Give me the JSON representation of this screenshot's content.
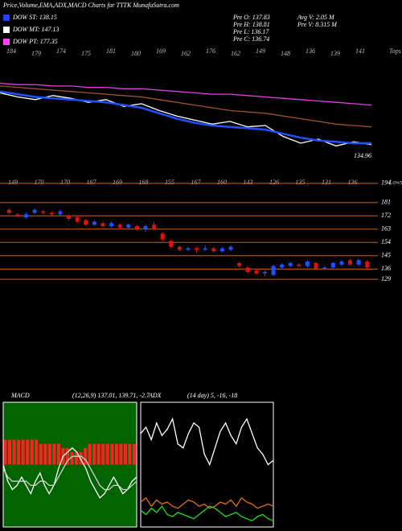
{
  "header": {
    "title": "Price,Volume,EMA,ADX,MACD Charts for TTTK MunafaSutra.com",
    "legend": [
      {
        "label": "DOW ST: 138.15",
        "color": "#2040ff"
      },
      {
        "label": "DOW MT: 147.13",
        "color": "#ffffff"
      },
      {
        "label": "DOW PT: 177.35",
        "color": "#ff40ff"
      }
    ],
    "info": [
      "Pre O: 137.83",
      "Pre H: 138.81",
      "Pre L: 136.17",
      "Pre C: 136.74"
    ],
    "info2": [
      "Avg V: 2.05 M",
      "Pre V: 8.315 M"
    ]
  },
  "chart_data": [
    {
      "type": "line",
      "tops_label": "Tops",
      "tops": [
        184,
        179,
        174,
        175,
        181,
        180,
        169,
        162,
        176,
        162,
        149,
        148,
        136,
        139,
        141
      ],
      "last_price": 134.96,
      "ylim": [
        125,
        190
      ],
      "series": [
        {
          "name": "DOW PT",
          "color": "#e040e0",
          "values": [
            182,
            181,
            181,
            180,
            180,
            179,
            179,
            178,
            178,
            177,
            176,
            175,
            174,
            174,
            173,
            172,
            171,
            170,
            169,
            168,
            167,
            166
          ]
        },
        {
          "name": "EMA",
          "color": "#a0522d",
          "values": [
            180,
            179,
            178,
            177,
            176,
            175,
            174,
            173,
            172,
            170,
            168,
            166,
            164,
            162,
            161,
            160,
            158,
            156,
            154,
            152,
            151,
            150
          ]
        },
        {
          "name": "Price",
          "color": "#ffffff",
          "values": [
            175,
            172,
            170,
            173,
            171,
            168,
            170,
            165,
            167,
            162,
            158,
            155,
            152,
            154,
            150,
            151,
            143,
            138,
            141,
            136,
            139,
            137
          ]
        },
        {
          "name": "DOW ST",
          "color": "#2050ff",
          "values": [
            176,
            174,
            172,
            171,
            170,
            169,
            168,
            166,
            164,
            160,
            156,
            153,
            151,
            150,
            149,
            148,
            145,
            142,
            140,
            139,
            138,
            138
          ]
        }
      ]
    },
    {
      "type": "candlestick",
      "lows_label": "Lows",
      "lows": [
        149,
        170,
        170,
        167,
        169,
        168,
        155,
        167,
        160,
        143,
        126,
        135,
        131,
        136
      ],
      "ylim": [
        128,
        195
      ],
      "yticks": [
        194,
        181,
        172,
        163,
        154,
        145,
        136,
        129
      ],
      "up_color": "#2050ff",
      "down_color": "#e01010",
      "grid_color": "#c86414",
      "open": [
        176,
        173,
        171,
        174,
        175,
        174,
        173,
        172,
        171,
        169,
        166,
        167,
        165,
        166,
        164,
        165,
        163,
        166,
        160,
        155,
        151,
        149,
        150,
        149,
        150,
        148,
        149,
        140,
        137,
        135,
        133,
        132,
        137,
        138,
        139,
        138,
        140,
        136,
        137,
        139,
        142,
        139,
        141
      ],
      "close": [
        174,
        172,
        173,
        176,
        174,
        173,
        175,
        170,
        168,
        166,
        168,
        165,
        167,
        164,
        166,
        163,
        165,
        163,
        156,
        151,
        149,
        150,
        149,
        150,
        148,
        150,
        151,
        138,
        134,
        133,
        134,
        138,
        139,
        140,
        138,
        141,
        136,
        137,
        140,
        141,
        139,
        142,
        137
      ],
      "high": [
        177,
        174,
        174,
        177,
        176,
        175,
        176,
        173,
        172,
        170,
        169,
        168,
        168,
        167,
        167,
        166,
        166,
        168,
        161,
        156,
        152,
        151,
        151,
        152,
        151,
        151,
        152,
        141,
        138,
        136,
        135,
        139,
        140,
        141,
        140,
        142,
        141,
        138,
        141,
        142,
        143,
        143,
        142
      ],
      "low": [
        173,
        171,
        170,
        173,
        173,
        172,
        172,
        169,
        167,
        165,
        165,
        164,
        164,
        163,
        163,
        162,
        161,
        162,
        155,
        150,
        148,
        148,
        147,
        148,
        147,
        147,
        148,
        137,
        133,
        132,
        131,
        131,
        136,
        137,
        137,
        137,
        135,
        135,
        136,
        138,
        138,
        138,
        136
      ]
    },
    {
      "type": "bar",
      "title": "MACD",
      "subtitle": "(12,26,9) 137.01, 139.71, -2.7",
      "ylim": [
        -15,
        15
      ],
      "color": "#ff2020",
      "background": "#006400",
      "values": [
        6,
        6,
        6,
        6,
        6,
        6,
        6,
        6,
        5,
        5,
        5,
        5,
        5,
        4,
        4,
        3,
        3,
        3,
        4,
        5,
        5,
        5,
        5,
        5,
        5,
        5,
        5,
        5,
        5,
        5
      ],
      "series": [
        {
          "name": "MACD",
          "color": "#ffffff",
          "values": [
            0,
            -4,
            -6,
            -5,
            -3,
            -5,
            -7,
            -4,
            -2,
            -5,
            -7,
            -5,
            -1,
            2,
            3,
            4,
            3,
            1,
            -1,
            -4,
            -6,
            -8,
            -7,
            -5,
            -3,
            -5,
            -7,
            -6,
            -4,
            -3
          ]
        },
        {
          "name": "Signal",
          "color": "#d0d0d0",
          "values": [
            -1,
            -3,
            -4,
            -4,
            -4,
            -4,
            -5,
            -5,
            -4,
            -4,
            -5,
            -5,
            -3,
            -1,
            1,
            2,
            2,
            2,
            1,
            -1,
            -3,
            -5,
            -6,
            -6,
            -5,
            -5,
            -6,
            -6,
            -5,
            -4
          ]
        }
      ]
    },
    {
      "type": "line",
      "title": "ADX",
      "subtitle": "(14 day) 5, -16, -18",
      "ylim": [
        0,
        60
      ],
      "background": "#000000",
      "series": [
        {
          "name": "ADX",
          "color": "#ffffff",
          "values": [
            45,
            48,
            42,
            50,
            44,
            47,
            52,
            40,
            38,
            45,
            50,
            48,
            35,
            30,
            38,
            46,
            50,
            44,
            40,
            48,
            52,
            45,
            38,
            35,
            30,
            32
          ]
        },
        {
          "name": "DI+",
          "color": "#e07010",
          "values": [
            12,
            14,
            10,
            13,
            11,
            12,
            10,
            9,
            11,
            13,
            12,
            10,
            11,
            9,
            10,
            12,
            11,
            13,
            10,
            14,
            12,
            11,
            9,
            10,
            11,
            10
          ]
        },
        {
          "name": "DI-",
          "color": "#20e020",
          "values": [
            8,
            6,
            9,
            7,
            10,
            6,
            5,
            7,
            6,
            5,
            4,
            6,
            8,
            10,
            9,
            7,
            5,
            6,
            7,
            5,
            4,
            3,
            5,
            6,
            4,
            3
          ]
        }
      ]
    }
  ]
}
